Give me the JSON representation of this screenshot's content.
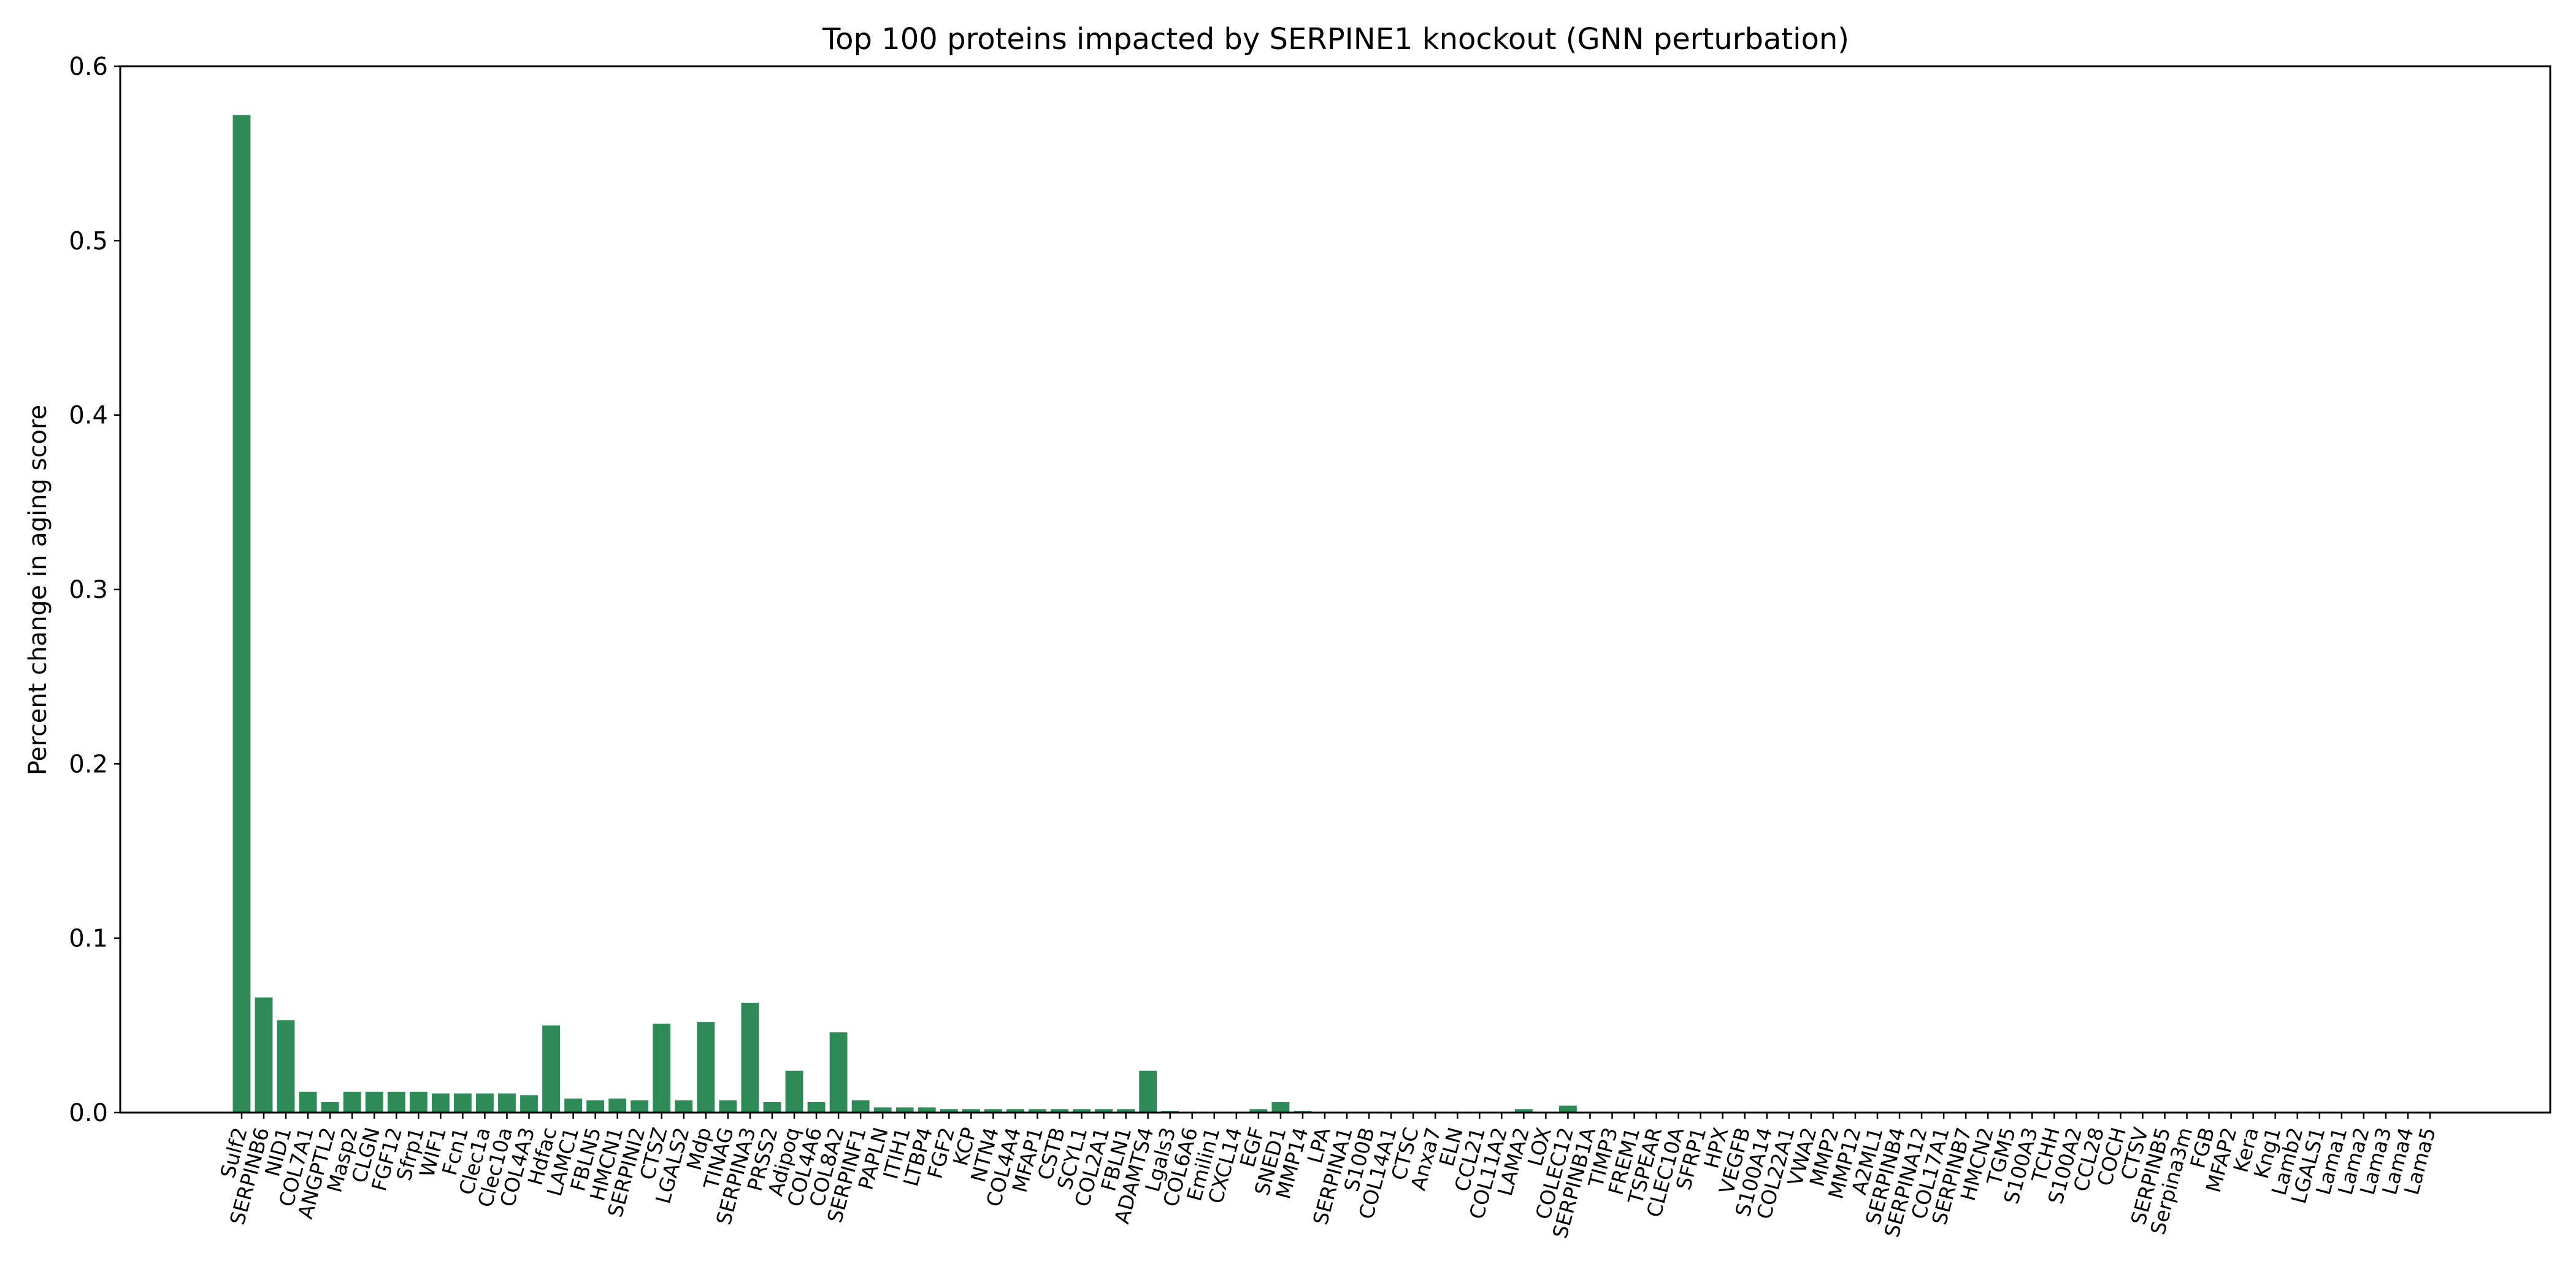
{
  "chart_data": {
    "type": "bar",
    "title": "Top 100 proteins impacted by SERPINE1 knockout (GNN perturbation)",
    "xlabel": "",
    "ylabel": "Percent change in aging score",
    "ylim": [
      0,
      0.6
    ],
    "yticks": [
      0.0,
      0.1,
      0.2,
      0.3,
      0.4,
      0.5,
      0.6
    ],
    "ytick_labels": [
      "0.0",
      "0.1",
      "0.2",
      "0.3",
      "0.4",
      "0.5",
      "0.6"
    ],
    "bar_color": "#2e8b57",
    "grid": false,
    "categories": [
      "Sulf2",
      "SERPINB6",
      "NID1",
      "COL7A1",
      "ANGPTL2",
      "Masp2",
      "CLGN",
      "FGF12",
      "Sfrp1",
      "WIF1",
      "Fcn1",
      "Clec1a",
      "Clec10a",
      "COL4A3",
      "Hdfac",
      "LAMC1",
      "FBLN5",
      "HMCN1",
      "SERPINI2",
      "CTSZ",
      "LGALS2",
      "Mdp",
      "TINAG",
      "SERPINA3",
      "PRSS2",
      "Adipoq",
      "COL4A6",
      "COL8A2",
      "SERPINF1",
      "PAPLN",
      "ITIH1",
      "LTBP4",
      "FGF2",
      "KCP",
      "NTN4",
      "COL4A4",
      "MFAP1",
      "CSTB",
      "SCYL1",
      "COL2A1",
      "FBLN1",
      "ADAMTS4",
      "Lgals3",
      "COL6A6",
      "Emilin1",
      "CXCL14",
      "EGF",
      "SNED1",
      "MMP14",
      "LPA",
      "SERPINA1",
      "S100B",
      "COL14A1",
      "CTSC",
      "Anxa7",
      "ELN",
      "CCL21",
      "COL11A2",
      "LAMA2",
      "LOX",
      "COLEC12",
      "SERPINB1A",
      "TIMP3",
      "FREM1",
      "TSPEAR",
      "CLEC10A",
      "SFRP1",
      "HPX",
      "VEGFB",
      "S100A14",
      "COL22A1",
      "VWA2",
      "MMP2",
      "MMP12",
      "A2ML1",
      "SERPINB4",
      "SERPINA12",
      "COL17A1",
      "SERPINB7",
      "HMCN2",
      "TGM5",
      "S100A3",
      "TCHH",
      "S100A2",
      "CCL28",
      "COCH",
      "CTSV",
      "SERPINB5",
      "Serpina3m",
      "FGB",
      "MFAP2",
      "Kera",
      "Kng1",
      "Lamb2",
      "LGALS1",
      "Lama1",
      "Lama2",
      "Lama3",
      "Lama4",
      "Lama5"
    ],
    "values": [
      0.572,
      0.066,
      0.053,
      0.012,
      0.006,
      0.012,
      0.012,
      0.012,
      0.012,
      0.011,
      0.011,
      0.011,
      0.011,
      0.01,
      0.05,
      0.008,
      0.007,
      0.008,
      0.007,
      0.051,
      0.007,
      0.052,
      0.007,
      0.063,
      0.006,
      0.024,
      0.006,
      0.046,
      0.007,
      0.003,
      0.003,
      0.003,
      0.002,
      0.002,
      0.002,
      0.002,
      0.002,
      0.002,
      0.002,
      0.002,
      0.002,
      0.024,
      0.001,
      0.0,
      0.0,
      0.0,
      0.002,
      0.006,
      0.001,
      0.0,
      0.0,
      0.0,
      0.0,
      0.0,
      0.0,
      0.0,
      0.0,
      0.0,
      0.002,
      0.0,
      0.004,
      0.0,
      0.0,
      0.0,
      0.0,
      0.0,
      0.0,
      0.0,
      0.0,
      0.0,
      0.0,
      0.0,
      0.0,
      0.0,
      0.0,
      0.0,
      0.0,
      0.0,
      0.0,
      0.0,
      0.0,
      0.0,
      0.0,
      0.0,
      0.0,
      0.0,
      0.0,
      0.0,
      0.0,
      0.0,
      0.0,
      0.0,
      0.0,
      0.0,
      0.0,
      0.0,
      0.0,
      0.0,
      0.0,
      0.0
    ]
  }
}
